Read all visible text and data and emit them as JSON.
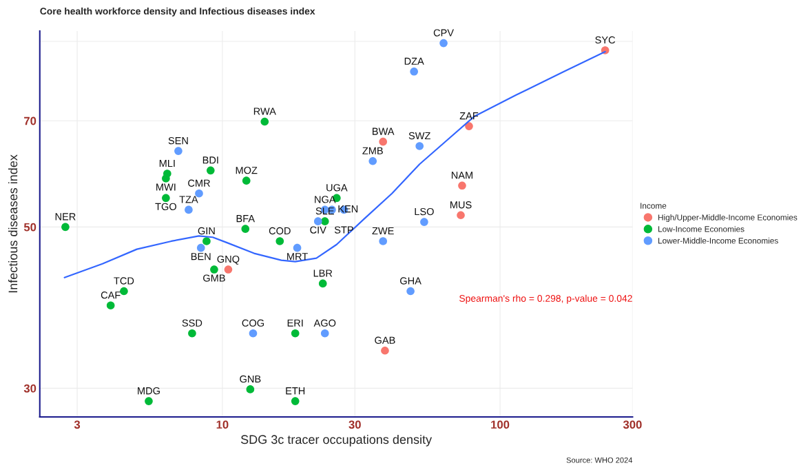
{
  "chart_data": {
    "type": "scatter",
    "title": "Core health workforce density and Infectious diseases index",
    "xlabel": "SDG 3c tracer occupations density",
    "ylabel": "Infectious diseases index",
    "legend_title": "Income",
    "log": "xy",
    "xlim": [
      2.2,
      300
    ],
    "ylim": [
      27.4,
      93
    ],
    "xticks": [
      3,
      10,
      30,
      100,
      300
    ],
    "yticks": [
      30,
      50,
      70,
      {
        "value": 90,
        "label": null
      }
    ],
    "grid": true,
    "legend": "right",
    "marker": "circle",
    "series": [
      {
        "name": "High/Upper-Middle-Income Economies",
        "color": "#f8766d",
        "x": [
          10.5,
          38.5,
          37.9,
          77.3,
          73.0,
          72.2,
          239
        ],
        "values": [
          43.7,
          33.8,
          65.5,
          68.8,
          57.0,
          51.9,
          87.5
        ]
      },
      {
        "name": "Low-Income Economies",
        "color": "#00ba38",
        "x": [
          2.72,
          6.33,
          6.26,
          6.26,
          9.07,
          12.2,
          14.2,
          12.1,
          8.77,
          9.34,
          4.42,
          3.96,
          7.78,
          18.3,
          5.43,
          12.6,
          18.3,
          23.0,
          16.1,
          25.8,
          23.4
        ],
        "values": [
          50.0,
          59.2,
          58.3,
          54.8,
          59.8,
          57.9,
          69.8,
          49.7,
          47.8,
          43.7,
          40.8,
          39.0,
          35.7,
          35.7,
          28.8,
          29.9,
          28.8,
          41.8,
          47.8,
          54.8,
          50.9
        ]
      },
      {
        "name": "Lower-Middle-Income Economies",
        "color": "#619cff",
        "x": [
          6.94,
          8.24,
          7.56,
          8.37,
          12.9,
          23.4,
          47.6,
          18.6,
          23.4,
          24.8,
          27.4,
          22.1,
          34.8,
          51.3,
          37.9,
          62.6,
          49.0,
          53.3
        ],
        "values": [
          63.6,
          55.6,
          52.8,
          46.8,
          35.7,
          35.7,
          40.8,
          46.8,
          52.8,
          52.8,
          52.8,
          50.9,
          61.6,
          64.6,
          47.8,
          89.5,
          81.8,
          50.8
        ]
      },
      {
        "type": "line",
        "marker": "none",
        "color": "#3366ff",
        "x": [
          2.7,
          3.7,
          4.92,
          6.55,
          8.23,
          9.23,
          10.35,
          13.0,
          16.3,
          18.3,
          21.8,
          25.8,
          32.4,
          40.8,
          51.3,
          64.4,
          80.9,
          114,
          170,
          239
        ],
        "values": [
          42.6,
          44.5,
          46.6,
          47.8,
          48.6,
          48.4,
          47.6,
          46.0,
          45.0,
          44.8,
          45.3,
          47.3,
          51.3,
          55.6,
          61.0,
          65.8,
          71.0,
          75.9,
          81.8,
          87.1
        ]
      }
    ],
    "annotations": [
      {
        "text": "GNQ",
        "x": 10.5,
        "y": 43.7
      },
      {
        "text": "GAB",
        "x": 38.5,
        "y": 33.8
      },
      {
        "text": "BWA",
        "x": 37.9,
        "y": 65.5
      },
      {
        "text": "ZAF",
        "x": 77.3,
        "y": 68.8
      },
      {
        "text": "NAM",
        "x": 73.0,
        "y": 57.0
      },
      {
        "text": "MUS",
        "x": 72.2,
        "y": 51.9
      },
      {
        "text": "SYC",
        "x": 239,
        "y": 87.5
      },
      {
        "text": "NER",
        "x": 2.72,
        "y": 50.0
      },
      {
        "text": "MLI",
        "x": 6.33,
        "y": 59.2
      },
      {
        "text": "MWI",
        "x": 6.26,
        "y": 58.3
      },
      {
        "text": "TGO",
        "x": 6.26,
        "y": 54.8
      },
      {
        "text": "BDI",
        "x": 9.07,
        "y": 59.8
      },
      {
        "text": "MOZ",
        "x": 12.2,
        "y": 57.9
      },
      {
        "text": "RWA",
        "x": 14.2,
        "y": 69.8
      },
      {
        "text": "BFA",
        "x": 12.1,
        "y": 49.7
      },
      {
        "text": "GIN",
        "x": 8.77,
        "y": 47.8
      },
      {
        "text": "GMB",
        "x": 9.34,
        "y": 43.7
      },
      {
        "text": "TCD",
        "x": 4.42,
        "y": 40.8
      },
      {
        "text": "CAF",
        "x": 3.96,
        "y": 39.0
      },
      {
        "text": "SSD",
        "x": 7.78,
        "y": 35.7
      },
      {
        "text": "ERI",
        "x": 18.3,
        "y": 35.7
      },
      {
        "text": "MDG",
        "x": 5.43,
        "y": 28.8
      },
      {
        "text": "GNB",
        "x": 12.6,
        "y": 29.9
      },
      {
        "text": "ETH",
        "x": 18.3,
        "y": 28.8
      },
      {
        "text": "LBR",
        "x": 23.0,
        "y": 41.8
      },
      {
        "text": "COD",
        "x": 16.1,
        "y": 47.8
      },
      {
        "text": "UGA",
        "x": 25.8,
        "y": 54.8
      },
      {
        "text": "SLE",
        "x": 23.4,
        "y": 50.9
      },
      {
        "text": "SEN",
        "x": 6.94,
        "y": 63.6
      },
      {
        "text": "CMR",
        "x": 8.24,
        "y": 55.6
      },
      {
        "text": "TZA",
        "x": 7.56,
        "y": 52.8
      },
      {
        "text": "BEN",
        "x": 8.37,
        "y": 46.8
      },
      {
        "text": "COG",
        "x": 12.9,
        "y": 35.7
      },
      {
        "text": "AGO",
        "x": 23.4,
        "y": 35.7
      },
      {
        "text": "GHA",
        "x": 47.6,
        "y": 40.8
      },
      {
        "text": "MRT",
        "x": 18.6,
        "y": 46.8
      },
      {
        "text": "NGA",
        "x": 23.4,
        "y": 52.8
      },
      {
        "text": "KEN",
        "x": 24.8,
        "y": 52.8
      },
      {
        "text": "STP",
        "x": 27.4,
        "y": 52.8
      },
      {
        "text": "CIV",
        "x": 22.1,
        "y": 50.9
      },
      {
        "text": "ZMB",
        "x": 34.8,
        "y": 61.6
      },
      {
        "text": "SWZ",
        "x": 51.3,
        "y": 64.6
      },
      {
        "text": "ZWE",
        "x": 37.9,
        "y": 47.8
      },
      {
        "text": "CPV",
        "x": 62.6,
        "y": 89.5
      },
      {
        "text": "DZA",
        "x": 49.0,
        "y": 81.8
      },
      {
        "text": "LSO",
        "x": 53.3,
        "y": 50.8
      },
      "Spearman's rho = 0.298, p-value = 0.042",
      "Source: WHO 2024"
    ]
  }
}
